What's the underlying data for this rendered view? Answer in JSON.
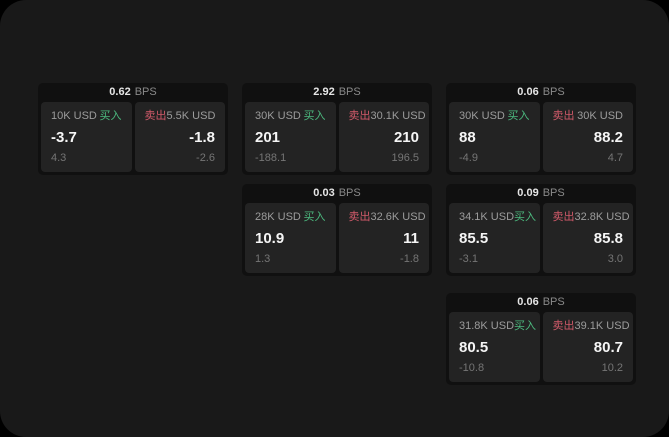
{
  "labels": {
    "bps": "BPS",
    "buy": "买入",
    "sell": "卖出"
  },
  "colors": {
    "page_bg": "#191919",
    "card_bg": "#101010",
    "panel_bg": "#232323",
    "buy": "#4cba7f",
    "sell": "#d15a6a"
  },
  "cards": [
    {
      "bps": "0.62",
      "row": 1,
      "col": 1,
      "buy": {
        "amount": "10K USD",
        "value": "-3.7",
        "change": "4.3"
      },
      "sell": {
        "amount": "5.5K USD",
        "value": "-1.8",
        "change": "-2.6"
      }
    },
    {
      "bps": "2.92",
      "row": 1,
      "col": 2,
      "buy": {
        "amount": "30K USD",
        "value": "201",
        "change": "-188.1"
      },
      "sell": {
        "amount": "30.1K USD",
        "value": "210",
        "change": "196.5"
      }
    },
    {
      "bps": "0.06",
      "row": 1,
      "col": 3,
      "buy": {
        "amount": "30K USD",
        "value": "88",
        "change": "-4.9"
      },
      "sell": {
        "amount": "30K USD",
        "value": "88.2",
        "change": "4.7"
      }
    },
    {
      "bps": "0.03",
      "row": 2,
      "col": 2,
      "buy": {
        "amount": "28K USD",
        "value": "10.9",
        "change": "1.3"
      },
      "sell": {
        "amount": "32.6K USD",
        "value": "11",
        "change": "-1.8"
      }
    },
    {
      "bps": "0.09",
      "row": 2,
      "col": 3,
      "buy": {
        "amount": "34.1K USD",
        "value": "85.5",
        "change": "-3.1"
      },
      "sell": {
        "amount": "32.8K USD",
        "value": "85.8",
        "change": "3.0"
      }
    },
    {
      "bps": "0.06",
      "row": 3,
      "col": 3,
      "buy": {
        "amount": "31.8K USD",
        "value": "80.5",
        "change": "-10.8"
      },
      "sell": {
        "amount": "39.1K USD",
        "value": "80.7",
        "change": "10.2"
      }
    }
  ]
}
